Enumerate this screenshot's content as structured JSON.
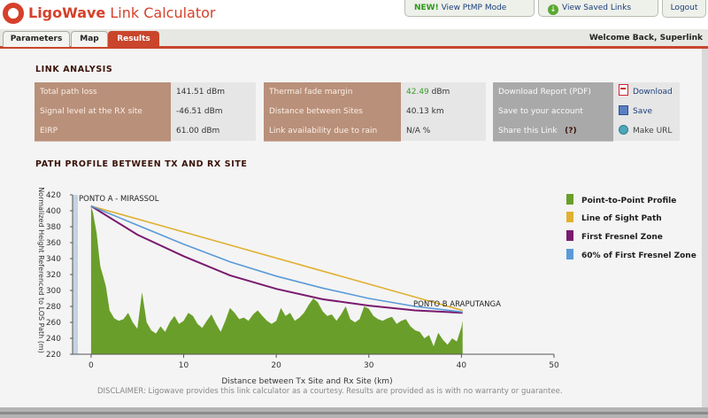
{
  "app": {
    "brand": "LigoWave",
    "title": "Link Calculator",
    "new_badge": "NEW!",
    "ptmp_label": "View PtMP Mode",
    "saved_links_label": "View Saved Links",
    "logout_label": "Logout"
  },
  "tabs": [
    {
      "label": "Parameters",
      "active": false
    },
    {
      "label": "Map",
      "active": false
    },
    {
      "label": "Results",
      "active": true
    }
  ],
  "welcome": "Welcome Back, Superlink",
  "analysis": {
    "title": "LINK ANALYSIS",
    "col1": [
      {
        "label": "Total path loss",
        "value": "141.51 dBm"
      },
      {
        "label": "Signal level at the RX site",
        "value": "-46.51 dBm"
      },
      {
        "label": "EIRP",
        "value": "61.00 dBm"
      }
    ],
    "col2": [
      {
        "label": "Thermal fade margin",
        "value": "42.49",
        "unit": "dBm"
      },
      {
        "label": "Distance between Sites",
        "value": "40.13 km"
      },
      {
        "label": "Link availability due to rain",
        "value": "N/A %"
      }
    ],
    "col3": [
      {
        "label": "Download Report (PDF)",
        "action": "Download",
        "icon": "pdf-icon"
      },
      {
        "label": "Save to your account",
        "action": "Save",
        "icon": "save-icon"
      },
      {
        "label": "Share this Link",
        "help": "(?)",
        "action": "Make URL",
        "icon": "link-icon"
      }
    ],
    "colors": {
      "label_bg": "#b9907a",
      "label_grey_bg": "#a9a9a9",
      "value_bg": "#e6e6e6",
      "fade_margin": "#3a9a2a"
    }
  },
  "profile": {
    "title": "PATH PROFILE BETWEEN TX AND RX SITE",
    "site_a": "PONTO A - MIRASSOL",
    "site_b": "PONTO B ARAPUTANGA",
    "disclaimer": "DISCLAIMER: Ligowave provides this link calculator as a courtesy.  Results are provided as is with no warranty or guarantee."
  },
  "chart_data": {
    "type": "area",
    "xlabel": "Distance between Tx Site and Rx Site (km)",
    "ylabel": "Normalized Height Referenced to LOS Path (m)",
    "xlim": [
      -2,
      50
    ],
    "ylim": [
      220,
      420
    ],
    "xticks": [
      0,
      10,
      20,
      30,
      40,
      50
    ],
    "yticks": [
      220,
      240,
      260,
      280,
      300,
      320,
      340,
      360,
      380,
      400,
      420
    ],
    "grid": false,
    "legend_position": "right",
    "series": [
      {
        "name": "Point-to-Point Profile",
        "color": "#6a9e2a",
        "x": [
          0,
          0.2,
          0.4,
          0.6,
          0.8,
          1,
          1.3,
          1.6,
          2,
          2.5,
          3,
          3.5,
          4,
          4.5,
          5,
          5.5,
          6,
          6.5,
          7,
          7.5,
          8,
          8.5,
          9,
          9.5,
          10,
          10.5,
          11,
          11.5,
          12,
          12.5,
          13,
          13.5,
          14,
          14.5,
          15,
          15.5,
          16,
          16.5,
          17,
          17.5,
          18,
          18.5,
          19,
          19.5,
          20,
          20.5,
          21,
          21.5,
          22,
          22.5,
          23,
          23.5,
          24,
          24.5,
          25,
          25.5,
          26,
          26.5,
          27,
          27.5,
          28,
          28.5,
          29,
          29.5,
          30,
          30.5,
          31,
          31.5,
          32,
          32.5,
          33,
          33.5,
          34,
          34.5,
          35,
          35.5,
          36,
          36.5,
          37,
          37.5,
          38,
          38.5,
          39,
          39.5,
          40,
          40.13
        ],
        "y": [
          405,
          398,
          385,
          372,
          350,
          330,
          318,
          305,
          275,
          265,
          262,
          264,
          272,
          260,
          252,
          298,
          260,
          250,
          246,
          255,
          248,
          260,
          268,
          258,
          262,
          272,
          268,
          258,
          253,
          262,
          270,
          258,
          248,
          262,
          278,
          272,
          264,
          266,
          262,
          270,
          275,
          268,
          262,
          258,
          262,
          278,
          268,
          272,
          262,
          266,
          272,
          282,
          290,
          285,
          274,
          268,
          270,
          262,
          270,
          280,
          264,
          260,
          264,
          280,
          277,
          268,
          264,
          262,
          265,
          267,
          258,
          262,
          264,
          255,
          250,
          248,
          240,
          244,
          230,
          247,
          238,
          232,
          240,
          236,
          254,
          262
        ]
      },
      {
        "name": "Line of Sight Path",
        "color": "#e0b030",
        "x": [
          0,
          40.13
        ],
        "y": [
          406,
          275
        ]
      },
      {
        "name": "First Fresnel Zone",
        "color": "#7a1a6e",
        "x": [
          0,
          5,
          10,
          15,
          20,
          25,
          30,
          35,
          40.13
        ],
        "y": [
          406,
          370,
          343,
          319,
          302,
          289,
          281,
          275,
          272
        ]
      },
      {
        "name": "60% of First Fresnel Zone",
        "color": "#5a9ad8",
        "x": [
          0,
          5,
          10,
          15,
          20,
          25,
          30,
          35,
          40.13
        ],
        "y": [
          406,
          382,
          358,
          336,
          318,
          303,
          290,
          280,
          273
        ]
      }
    ],
    "annotations": [
      {
        "text": "PONTO A - MIRASSOL",
        "x": 0,
        "y": 406
      },
      {
        "text": "PONTO B ARAPUTANGA",
        "x": 40.13,
        "y": 275
      }
    ]
  }
}
